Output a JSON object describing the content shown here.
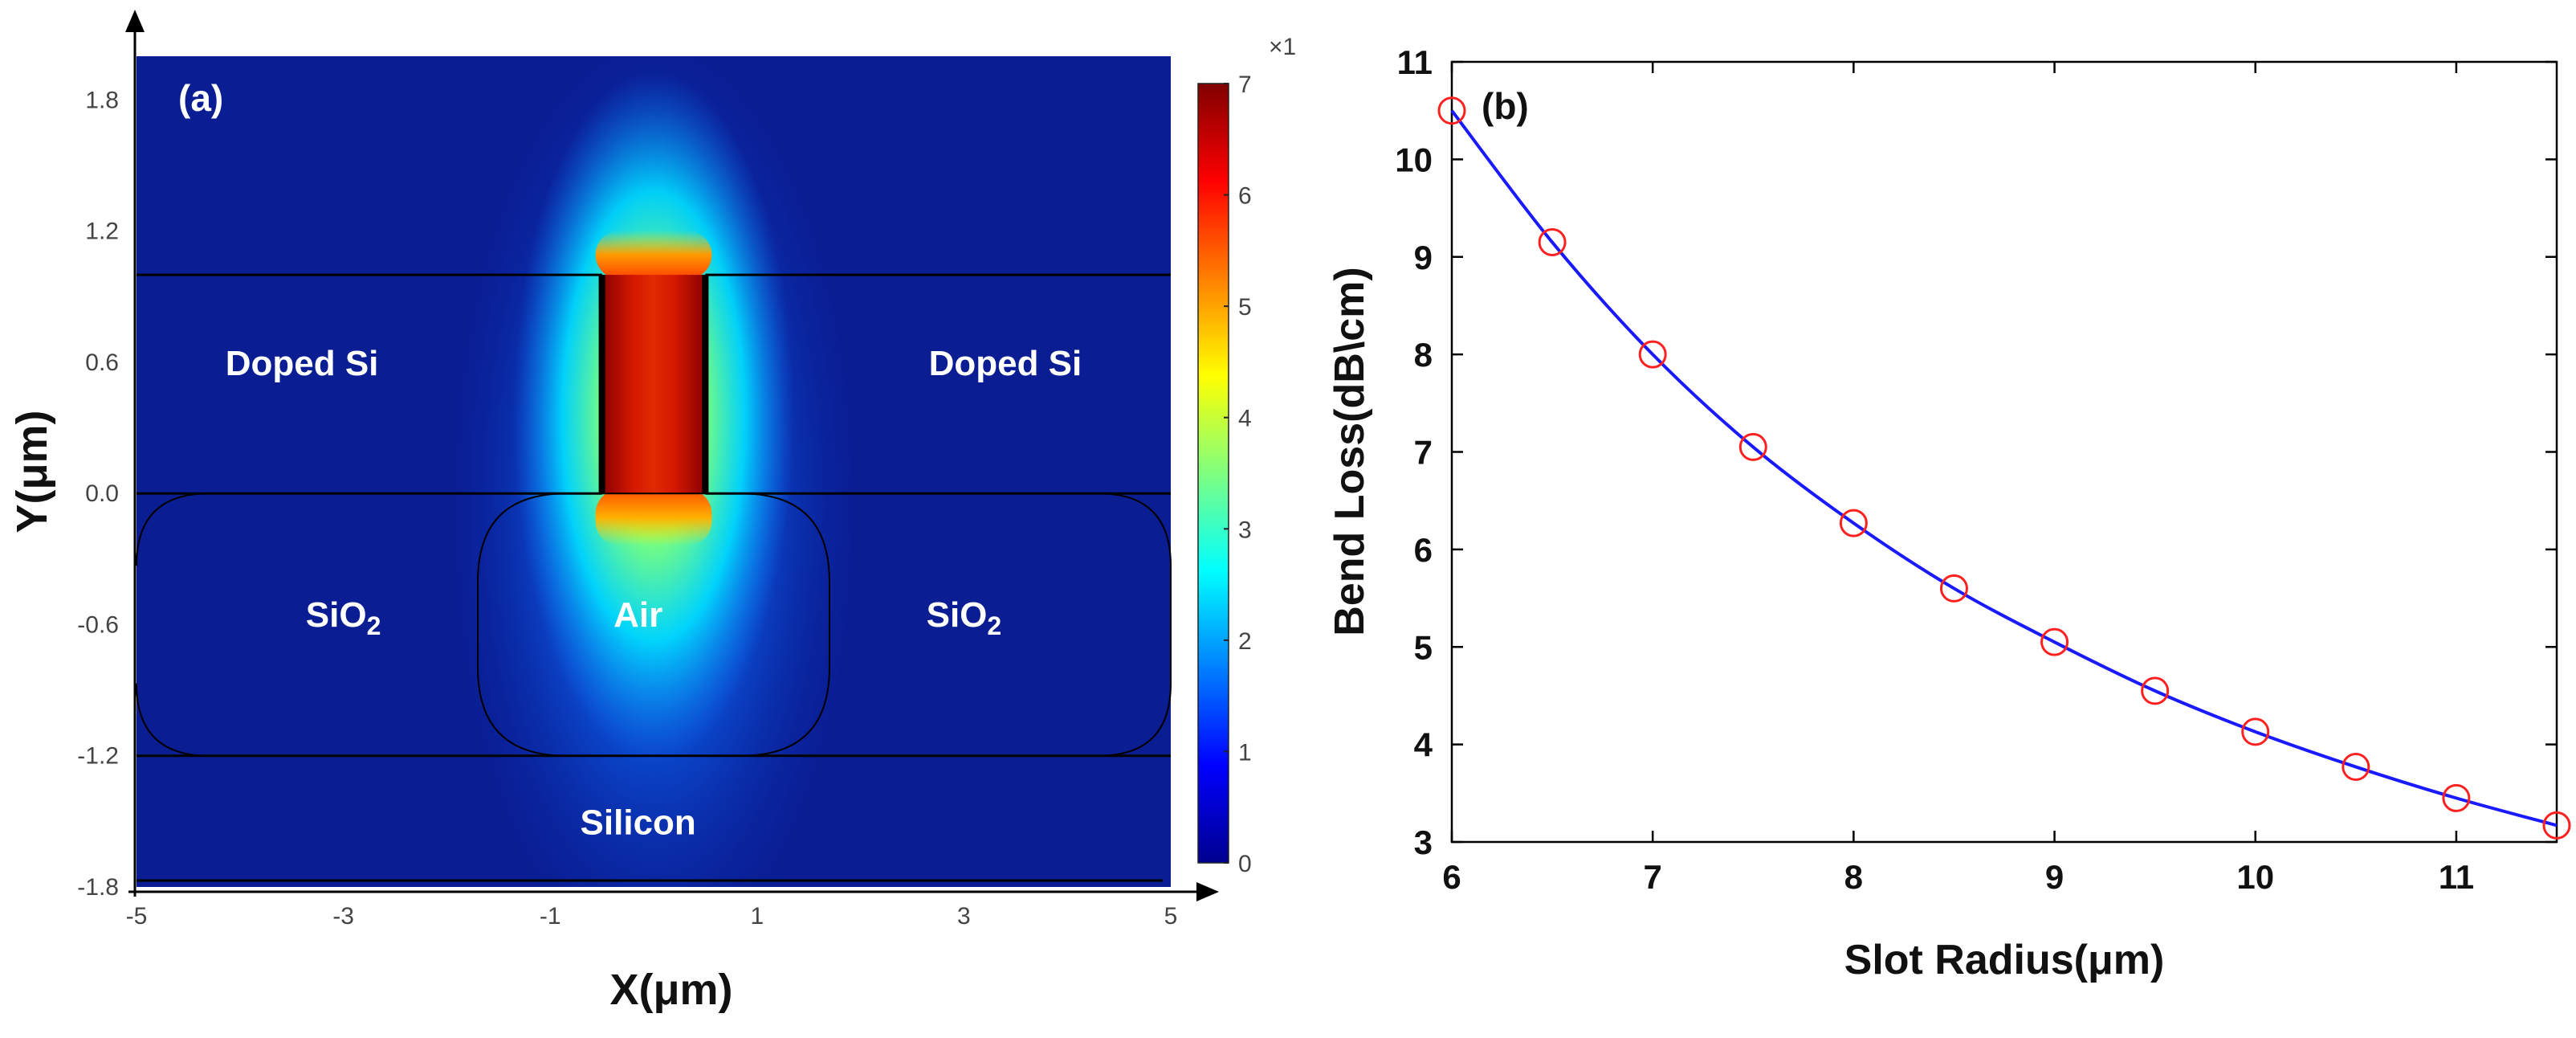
{
  "chart_data": [
    {
      "type": "heatmap",
      "panel_label": "(a)",
      "xlabel": "X(μm)",
      "ylabel": "Y(μm)",
      "xlim": [
        -5,
        5
      ],
      "ylim": [
        -1.8,
        2.0
      ],
      "x_ticks": [
        "-5",
        "-3",
        "-1",
        "1",
        "3",
        "5"
      ],
      "y_ticks": [
        "1.8",
        "1.2",
        "0.6",
        "0.0",
        "-0.6",
        "-1.2",
        "-1.8"
      ],
      "colorbar": {
        "min": 0,
        "max": 7,
        "ticks": [
          "7",
          "6",
          "5",
          "4",
          "3",
          "2",
          "1",
          "0"
        ],
        "scale_label": "×1"
      },
      "regions": [
        {
          "label": "Doped Si",
          "x": -3.4,
          "y": 0.6
        },
        {
          "label": "Doped Si",
          "x": 3.4,
          "y": 0.6
        },
        {
          "label": "SiO",
          "sub": "2",
          "x": -3.0,
          "y": -0.55
        },
        {
          "label": "Air",
          "x": -0.15,
          "y": -0.55
        },
        {
          "label": "SiO",
          "sub": "2",
          "x": 3.0,
          "y": -0.55
        },
        {
          "label": "Silicon",
          "x": -0.15,
          "y": -1.5
        }
      ],
      "structure": {
        "doped_si_top": 1.0,
        "doped_si_bottom": 0.0,
        "slot_x": [
          -0.5,
          0.5
        ],
        "silicon_top": -1.2,
        "colormap": "jet",
        "peak_value": 7
      }
    },
    {
      "type": "line",
      "panel_label": "(b)",
      "xlabel": "Slot Radius(μm)",
      "ylabel": "Bend Loss(dB\\cm)",
      "xlim": [
        6,
        11.5
      ],
      "ylim": [
        3,
        11
      ],
      "x_ticks": [
        "6",
        "7",
        "8",
        "9",
        "10",
        "11"
      ],
      "y_ticks": [
        "3",
        "4",
        "5",
        "6",
        "7",
        "8",
        "9",
        "10",
        "11"
      ],
      "series": [
        {
          "name": "Bend loss",
          "marker": "circle",
          "line_color": "#1a1aff",
          "marker_color": "#ff2020",
          "x": [
            6,
            6.5,
            7,
            7.5,
            8,
            8.5,
            9,
            9.5,
            10,
            10.5,
            11,
            11.5
          ],
          "y": [
            10.5,
            9.15,
            8.0,
            7.05,
            6.27,
            5.6,
            5.05,
            4.55,
            4.13,
            3.77,
            3.45,
            3.17
          ]
        }
      ]
    }
  ]
}
